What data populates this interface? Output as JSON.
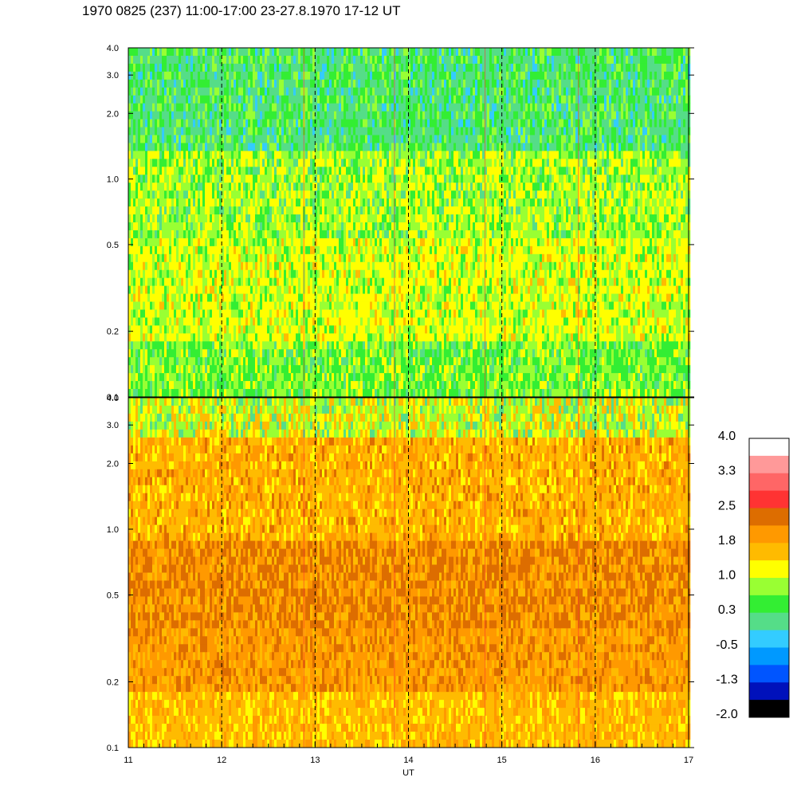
{
  "title": "1970 0825 (237) 11:00-17:00 23-27.8.1970  17-12 UT",
  "chart_data": {
    "type": "heatmap",
    "xlabel": "UT",
    "xlim": [
      11,
      17
    ],
    "x_ticks": [
      "11",
      "12",
      "13",
      "14",
      "15",
      "16",
      "17"
    ],
    "x_dashed_lines": [
      12,
      13,
      14,
      15,
      16
    ],
    "y_scale": "log",
    "ylim": [
      0.1,
      4.0
    ],
    "y_ticks": [
      "0.1",
      "0.2",
      "0.5",
      "1.0",
      "2.0",
      "3.0",
      "4.0"
    ],
    "panels": [
      {
        "id": "upper",
        "dominant": "green-yellow",
        "levels_range": [
          0.3,
          1.2
        ]
      },
      {
        "id": "lower",
        "dominant": "orange",
        "levels_range": [
          1.0,
          2.3
        ]
      }
    ],
    "colorbar": {
      "tick_labels": [
        "4.0",
        "3.3",
        "2.5",
        "1.8",
        "1.0",
        "0.3",
        "-0.5",
        "-1.3",
        "-2.0"
      ],
      "colors": [
        "#ffffff",
        "#ff9999",
        "#ff6666",
        "#ff3333",
        "#dd6d00",
        "#ff9900",
        "#ffbb00",
        "#ffff00",
        "#99ff33",
        "#33ee33",
        "#55dd88",
        "#33ccff",
        "#0099ff",
        "#0055ff",
        "#0011bb",
        "#000000"
      ]
    }
  }
}
